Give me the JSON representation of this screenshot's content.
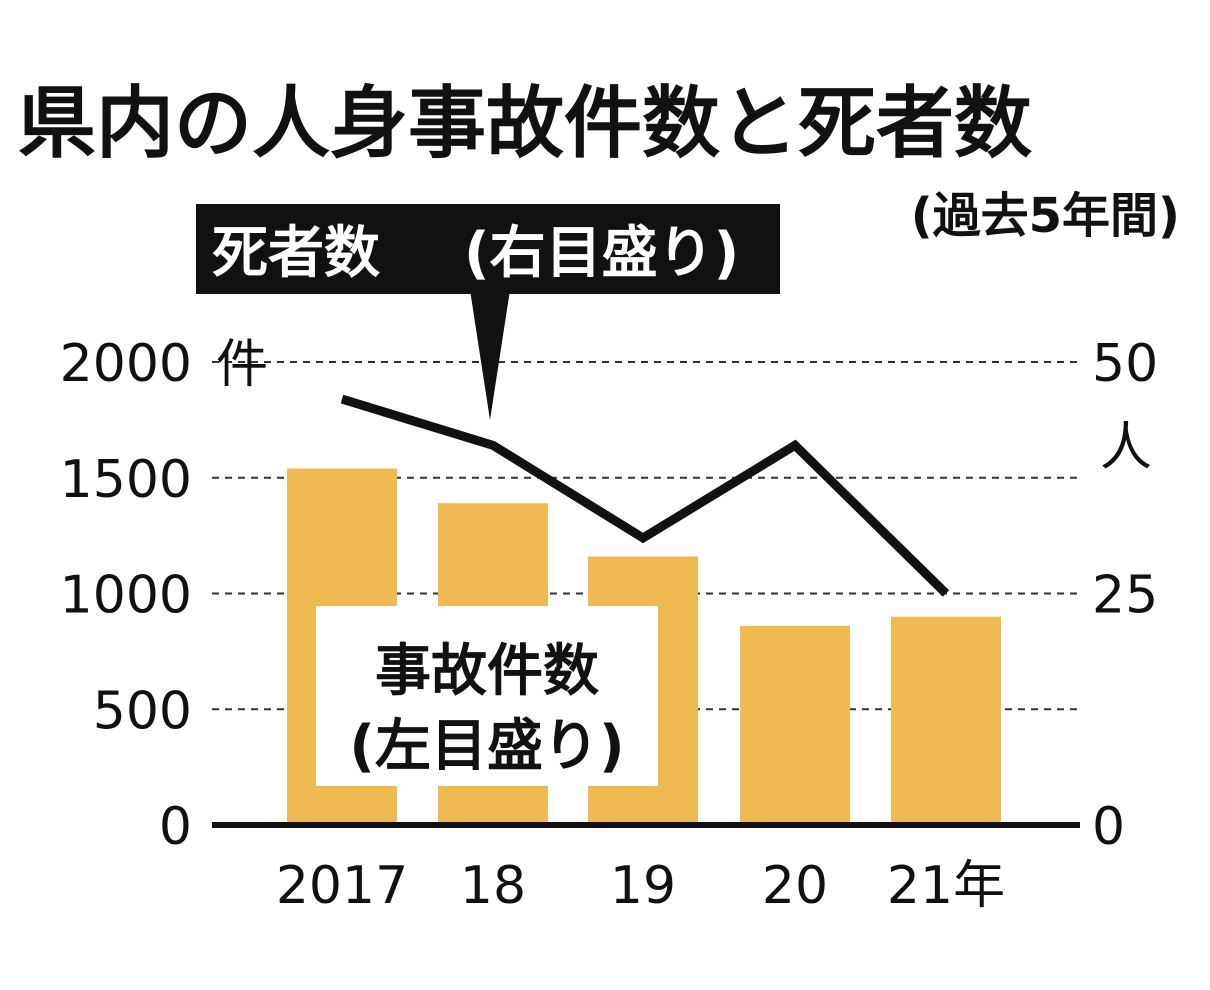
{
  "chart_data": {
    "type": "bar+line",
    "title": "県内の人身事故件数と死者数",
    "subtitle": "(過去5年間)",
    "categories": [
      "2017",
      "18",
      "19",
      "20",
      "21年"
    ],
    "series": [
      {
        "name": "事故件数",
        "name_note": "(左目盛り)",
        "type": "bar",
        "axis": "left",
        "values": [
          1540,
          1390,
          1160,
          860,
          900
        ]
      },
      {
        "name": "死者数",
        "name_note": "(右目盛り)",
        "type": "line",
        "axis": "right",
        "values": [
          46,
          41,
          31,
          41,
          25
        ]
      }
    ],
    "left_axis": {
      "unit": "件",
      "ticks": [
        "0",
        "500",
        "1000",
        "1500",
        "2000"
      ],
      "min": 0,
      "max": 2000
    },
    "right_axis": {
      "unit": "人",
      "ticks": [
        "0",
        "25",
        "50"
      ],
      "min": 0,
      "max": 50
    },
    "grid": "dashed horizontal",
    "colors": {
      "bar": "#efba51",
      "line": "#111111",
      "callout_bg": "#111111",
      "legend_bg": "#ffffff"
    }
  }
}
